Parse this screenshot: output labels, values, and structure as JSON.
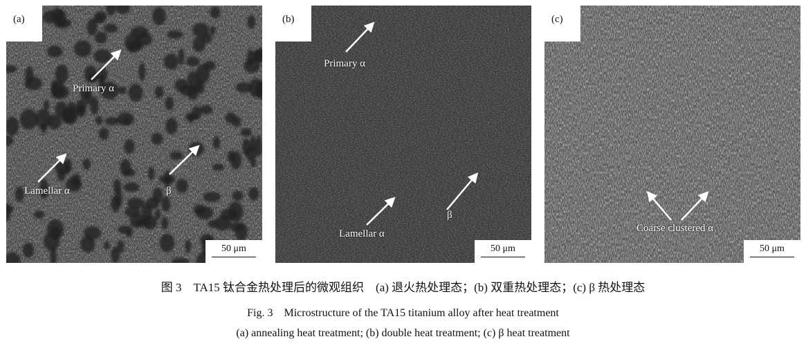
{
  "panels": [
    {
      "label": "(a)",
      "scale_bar": "50 μm",
      "annotations": [
        "Primary α",
        "Lamellar α",
        "β"
      ]
    },
    {
      "label": "(b)",
      "scale_bar": "50 μm",
      "annotations": [
        "Primary α",
        "Lamellar α",
        "β"
      ]
    },
    {
      "label": "(c)",
      "scale_bar": "50 μm",
      "annotations": [
        "Coarse clustered α"
      ]
    }
  ],
  "caption": {
    "chinese": "图 3　TA15 钛合金热处理后的微观组织　(a) 退火热处理态；(b) 双重热处理态；(c) β 热处理态",
    "english_title": "Fig. 3　Microstructure of the TA15 titanium alloy after heat treatment",
    "english_sub": "(a) annealing heat treatment; (b) double heat treatment; (c) β heat treatment"
  }
}
